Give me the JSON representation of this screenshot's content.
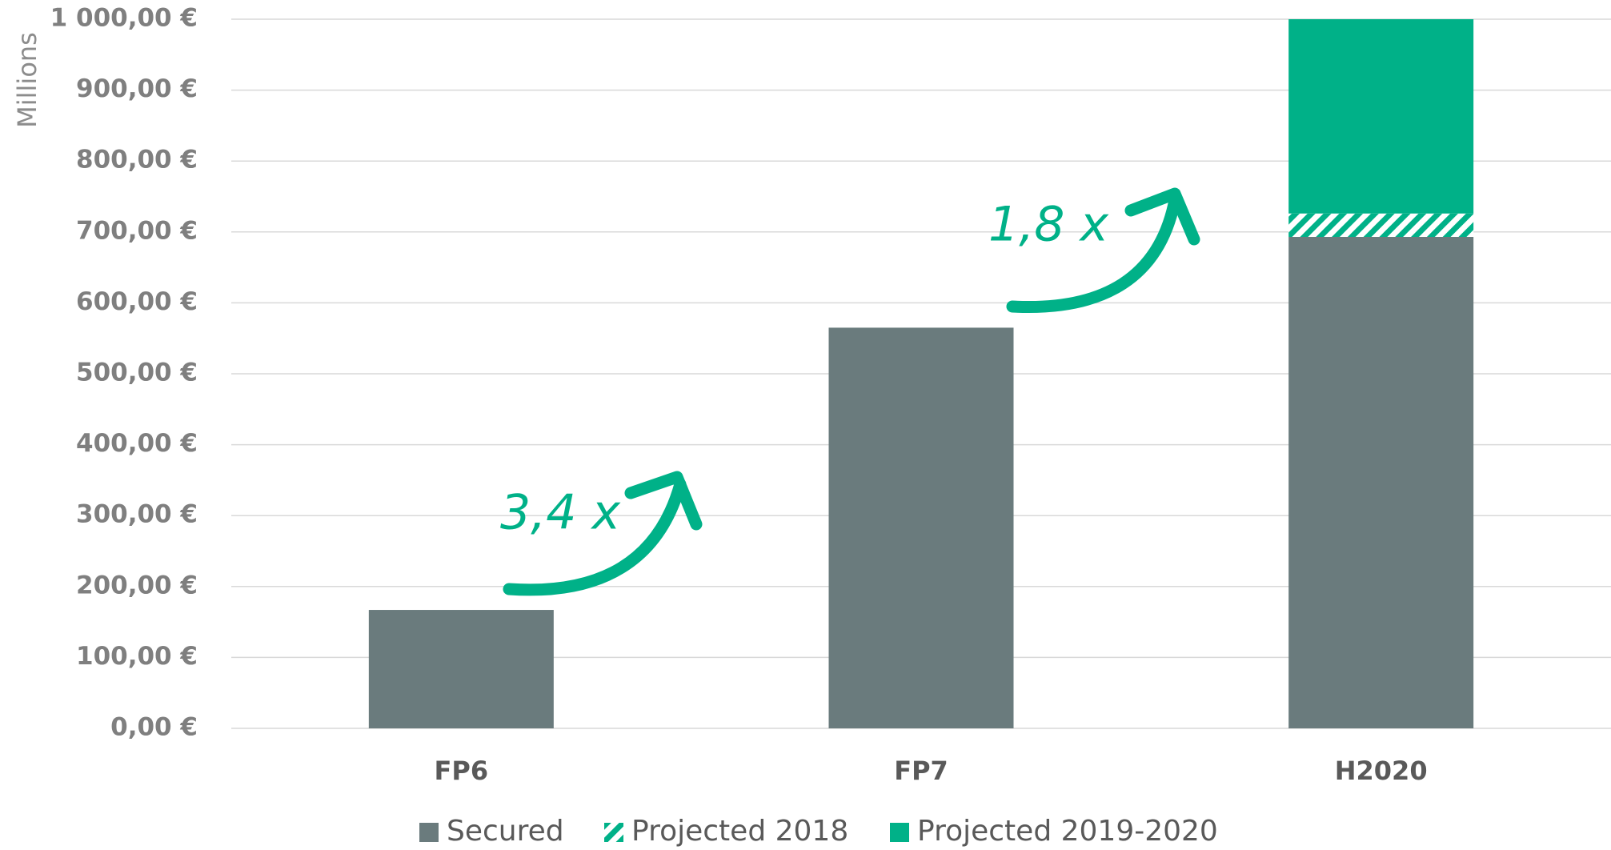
{
  "chart_data": {
    "type": "stacked-bar",
    "y_label": "Millions",
    "categories": [
      "FP6",
      "FP7",
      "H2020"
    ],
    "series": [
      {
        "name": "Secured",
        "color": "#6a7b7d",
        "pattern": "solid",
        "values": [
          167,
          565,
          693
        ]
      },
      {
        "name": "Projected 2018",
        "color": "#00b188",
        "pattern": "hatch",
        "values": [
          null,
          null,
          33
        ]
      },
      {
        "name": "Projected 2019-2020",
        "color": "#00b188",
        "pattern": "solid",
        "values": [
          null,
          null,
          274
        ]
      }
    ],
    "ylim": [
      0,
      1000
    ],
    "yticks": [
      {
        "value": 0,
        "label": "0,00 €"
      },
      {
        "value": 100,
        "label": "100,00 €"
      },
      {
        "value": 200,
        "label": "200,00 €"
      },
      {
        "value": 300,
        "label": "300,00 €"
      },
      {
        "value": 400,
        "label": "400,00 €"
      },
      {
        "value": 500,
        "label": "500,00 €"
      },
      {
        "value": 600,
        "label": "600,00 €"
      },
      {
        "value": 700,
        "label": "700,00 €"
      },
      {
        "value": 800,
        "label": "800,00 €"
      },
      {
        "value": 900,
        "label": "900,00 €"
      },
      {
        "value": 1000,
        "label": "1 000,00 €"
      }
    ],
    "grid": true,
    "legend": "bottom",
    "annotations": [
      "3,4 x",
      "1,8 x"
    ]
  }
}
